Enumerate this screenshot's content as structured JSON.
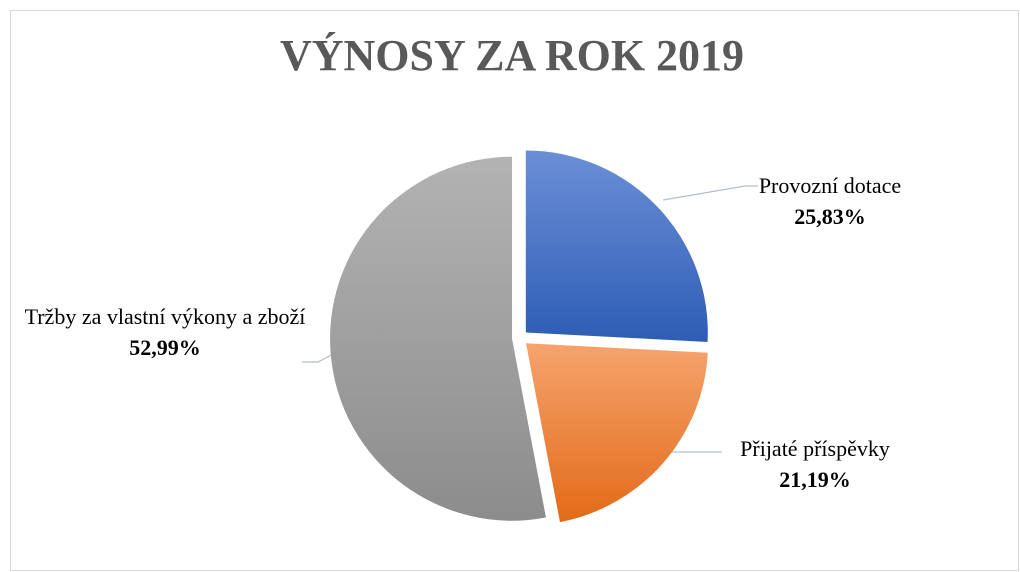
{
  "chart_data": {
    "type": "pie",
    "title": "VÝNOSY ZA ROK 2019",
    "categories": [
      "Provozní dotace",
      "Přijaté příspěvky",
      "Tržby za vlastní výkony a zboží"
    ],
    "values": [
      25.83,
      21.19,
      52.99
    ],
    "value_labels": [
      "25,83%",
      "21,19%",
      "52,99%"
    ],
    "colors": [
      [
        "#6b8fd6",
        "#2e5db5"
      ],
      [
        "#f5a46e",
        "#e36a17"
      ],
      [
        "#b3b3b3",
        "#8c8c8c"
      ]
    ]
  }
}
